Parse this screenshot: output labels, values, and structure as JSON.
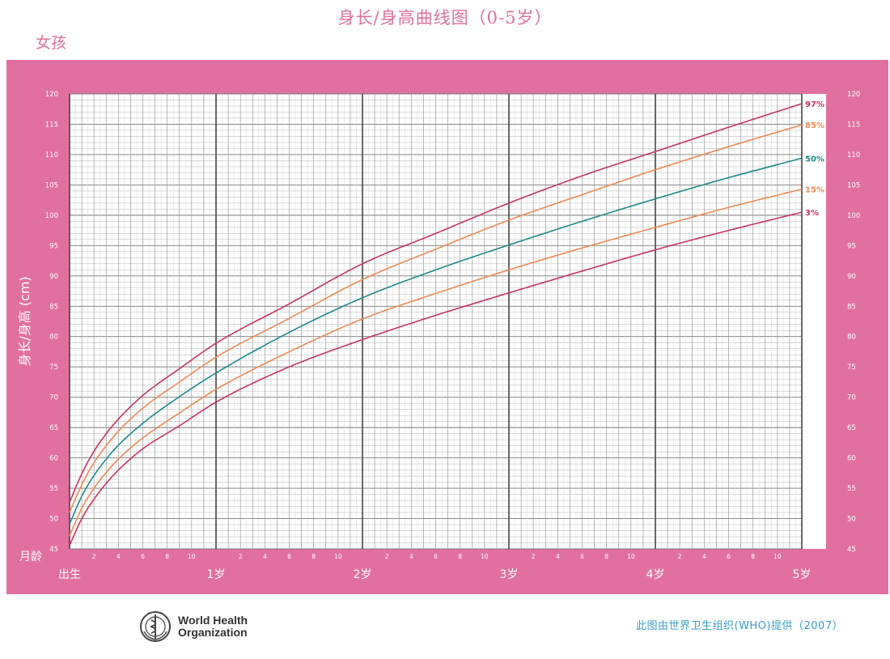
{
  "header": {
    "title": "身长/身高曲线图（0-5岁）",
    "gender": "女孩"
  },
  "footer": {
    "org_line1": "World Health",
    "org_line2": "Organization",
    "credit": "此图由世界卫生组织(WHO)提供（2007）"
  },
  "chart_data": {
    "type": "line",
    "ylabel": "身长/身高 (cm)",
    "xlabel": "月龄",
    "ylim": [
      45,
      120
    ],
    "xlim": [
      0,
      60
    ],
    "y_ticks": [
      45,
      50,
      55,
      60,
      65,
      70,
      75,
      80,
      85,
      90,
      95,
      100,
      105,
      110,
      115,
      120
    ],
    "y_tick_labels": [
      "45",
      "50",
      "55",
      "60",
      "65",
      "70",
      "75",
      "80",
      "85",
      "90",
      "95",
      "100",
      "105",
      "110",
      "115",
      "120"
    ],
    "x_major_labels": [
      {
        "month": 0,
        "label": "出生"
      },
      {
        "month": 12,
        "label": "1岁"
      },
      {
        "month": 24,
        "label": "2岁"
      },
      {
        "month": 36,
        "label": "3岁"
      },
      {
        "month": 48,
        "label": "4岁"
      },
      {
        "month": 60,
        "label": "5岁"
      }
    ],
    "x_minor_labels": [
      "2",
      "4",
      "6",
      "8",
      "10"
    ],
    "grid": true,
    "x": [
      0,
      1,
      2,
      3,
      4,
      6,
      9,
      12,
      18,
      24,
      30,
      36,
      42,
      48,
      54,
      60
    ],
    "series": [
      {
        "name": "97%",
        "color": "#c8345f",
        "values": [
          52.7,
          57.4,
          61.1,
          64.0,
          66.4,
          70.3,
          74.7,
          78.9,
          85.4,
          92.0,
          97.0,
          102.0,
          106.5,
          110.5,
          114.5,
          118.4
        ]
      },
      {
        "name": "85%",
        "color": "#ef8a56",
        "values": [
          51.0,
          55.6,
          59.2,
          62.0,
          64.4,
          68.2,
          72.5,
          76.6,
          83.0,
          89.4,
          94.4,
          99.2,
          103.4,
          107.5,
          111.3,
          114.9
        ]
      },
      {
        "name": "50%",
        "color": "#1f8a8a",
        "values": [
          49.1,
          53.7,
          57.1,
          59.8,
          62.1,
          65.7,
          70.1,
          74.0,
          80.7,
          86.4,
          91.0,
          95.1,
          99.0,
          102.7,
          106.2,
          109.4
        ]
      },
      {
        "name": "15%",
        "color": "#ef8a56",
        "values": [
          47.2,
          51.7,
          55.0,
          57.6,
          59.8,
          63.3,
          67.4,
          71.3,
          77.5,
          82.9,
          87.1,
          91.0,
          94.6,
          98.0,
          101.3,
          104.3
        ]
      },
      {
        "name": "3%",
        "color": "#c8345f",
        "values": [
          45.6,
          50.0,
          53.2,
          55.8,
          58.0,
          61.5,
          65.3,
          69.2,
          75.0,
          79.5,
          83.5,
          87.2,
          90.8,
          94.3,
          97.5,
          100.5
        ]
      }
    ],
    "legend_placement": "right-end-of-lines"
  },
  "colors": {
    "frame": "#e2709f",
    "grid": "#9a9a9a",
    "major_grid": "#444444",
    "title": "#e0709b",
    "credit": "#3aa0c8"
  },
  "icons": {
    "who_logo": "who-emblem-icon"
  }
}
